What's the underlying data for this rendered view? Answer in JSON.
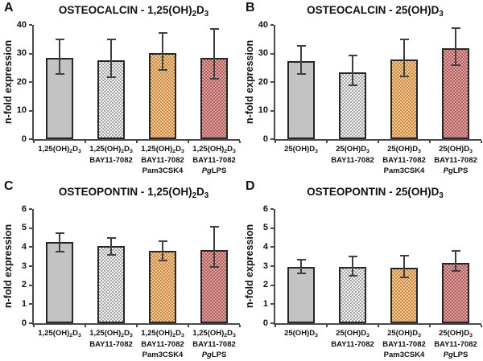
{
  "palette": {
    "background": "#FFFFFF",
    "text": "#111111",
    "axis": "#4A4A4A",
    "error_bar": "#3F3F3F",
    "bar_border": "#262626"
  },
  "bar_fill_styles": {
    "solid-gray": {
      "type": "solid",
      "color": "#C3C3C3"
    },
    "checker-gray": {
      "type": "checker",
      "light": "#F1F1F1",
      "dark": "#A9A9A9"
    },
    "checker-orange": {
      "type": "checker",
      "light": "#F0C78F",
      "dark": "#CD8B49"
    },
    "checker-red": {
      "type": "checker",
      "light": "#DBA29F",
      "dark": "#B35F5D"
    }
  },
  "chart_data": [
    {
      "panel": "A",
      "type": "bar",
      "title": "OSTEOCALCIN - 1,25(OH)_2_D_3_",
      "ylabel": "n-fold expression",
      "ylim": [
        0,
        40
      ],
      "ytick_step": 10,
      "grid": false,
      "legend": null,
      "categories": [
        [
          "1,25(OH)_2_D_3_"
        ],
        [
          "1,25(OH)_2_D_3_",
          "BAY11-7082"
        ],
        [
          "1,25(OH)_2_D_3_",
          "BAY11-7082",
          "Pam3CSK4"
        ],
        [
          "1,25(OH)_2_D_3_",
          "BAY11-7082",
          "*Pg*LPS"
        ]
      ],
      "values": [
        28.4,
        27.5,
        30.1,
        28.5
      ],
      "err_up": [
        6.6,
        7.5,
        7.2,
        10.0
      ],
      "err_down": [
        5.7,
        5.9,
        5.8,
        7.5
      ],
      "bar_styles": [
        "solid-gray",
        "checker-gray",
        "checker-orange",
        "checker-red"
      ]
    },
    {
      "panel": "B",
      "type": "bar",
      "title": "OSTEOCALCIN - 25(OH)D_3_",
      "ylabel": "n-fold expression",
      "ylim": [
        0,
        40
      ],
      "ytick_step": 10,
      "grid": false,
      "legend": null,
      "categories": [
        [
          "25(OH)D_3_"
        ],
        [
          "25(OH)D_3_",
          "BAY11-7082"
        ],
        [
          "25(OH)D_3_",
          "BAY11-7082",
          "Pam3CSK4"
        ],
        [
          "25(OH)D_3_",
          "BAY11-7082",
          "*Pg*LPS"
        ]
      ],
      "values": [
        27.4,
        23.5,
        27.8,
        31.8
      ],
      "err_up": [
        5.3,
        5.7,
        7.0,
        7.2
      ],
      "err_down": [
        4.6,
        4.5,
        5.7,
        5.8
      ],
      "bar_styles": [
        "solid-gray",
        "checker-gray",
        "checker-orange",
        "checker-red"
      ]
    },
    {
      "panel": "C",
      "type": "bar",
      "title": "OSTEOPONTIN - 1,25(OH)_2_D_3_",
      "ylabel": "n-fold expression",
      "ylim": [
        0,
        6
      ],
      "ytick_step": 1,
      "grid": false,
      "legend": null,
      "categories": [
        [
          "1,25(OH)_2_D_3_"
        ],
        [
          "1,25(OH)_2_D_3_",
          "BAY11-7082"
        ],
        [
          "1,25(OH)_2_D_3_",
          "BAY11-7082",
          "Pam3CSK4"
        ],
        [
          "1,25(OH)_2_D_3_",
          "BAY11-7082",
          "*Pg*LPS"
        ]
      ],
      "values": [
        4.25,
        4.05,
        3.8,
        3.85
      ],
      "err_up": [
        0.5,
        0.45,
        0.5,
        1.2
      ],
      "err_down": [
        0.5,
        0.45,
        0.5,
        0.9
      ],
      "bar_styles": [
        "solid-gray",
        "checker-gray",
        "checker-orange",
        "checker-red"
      ]
    },
    {
      "panel": "D",
      "type": "bar",
      "title": "OSTEOPONTIN - 25(OH)D_3_",
      "ylabel": "n-fold expression",
      "ylim": [
        0,
        6
      ],
      "ytick_step": 1,
      "grid": false,
      "legend": null,
      "categories": [
        [
          "25(OH)D_3_"
        ],
        [
          "25(OH)D_3_",
          "BAY11-7082"
        ],
        [
          "25(OH)D_3_",
          "BAY11-7082",
          "Pam3CSK4"
        ],
        [
          "25(OH)D_3_",
          "BAY11-7082",
          "*Pg*LPS"
        ]
      ],
      "values": [
        2.95,
        2.95,
        2.9,
        3.15
      ],
      "err_up": [
        0.4,
        0.55,
        0.65,
        0.65
      ],
      "err_down": [
        0.35,
        0.45,
        0.5,
        0.4
      ],
      "bar_styles": [
        "solid-gray",
        "checker-gray",
        "checker-orange",
        "checker-red"
      ]
    }
  ]
}
